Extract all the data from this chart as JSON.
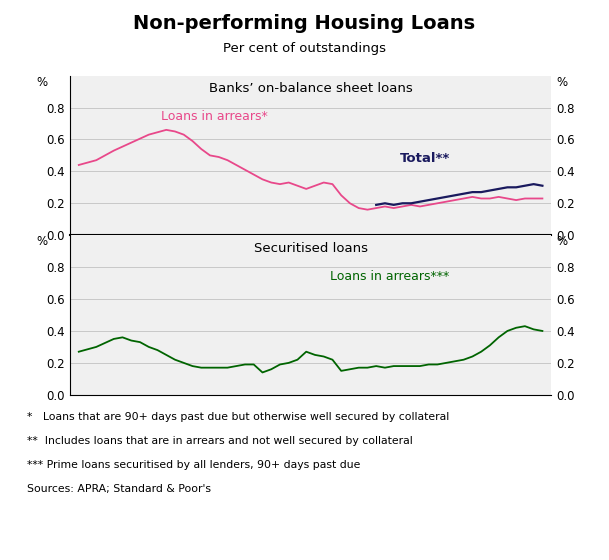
{
  "title": "Non-performing Housing Loans",
  "subtitle": "Per cent of outstandings",
  "footnotes": [
    "*   Loans that are 90+ days past due but otherwise well secured by collateral",
    "**  Includes loans that are in arrears and not well secured by collateral",
    "*** Prime loans securitised by all lenders, 90+ days past due",
    "Sources: APRA; Standard & Poor's"
  ],
  "top_panel_label": "Banks’ on-balance sheet loans",
  "bottom_panel_label": "Securitised loans",
  "colors": {
    "pink": "#E8488A",
    "navy": "#1A1A5E",
    "green": "#006400",
    "background": "#F0F0F0",
    "grid": "#C8C8C8"
  },
  "top_arrears": {
    "x": [
      1993.5,
      1994.0,
      1994.5,
      1995.0,
      1995.5,
      1996.0,
      1996.25,
      1996.5,
      1996.75,
      1997.0,
      1997.25,
      1997.5,
      1997.75,
      1998.0,
      1998.25,
      1998.5,
      1998.75,
      1999.0,
      1999.25,
      1999.5,
      1999.75,
      2000.0,
      2000.25,
      2000.5,
      2000.75,
      2001.0,
      2001.25,
      2001.5,
      2001.75,
      2002.0,
      2002.25,
      2002.5,
      2002.75,
      2003.0,
      2003.25,
      2003.5,
      2003.75,
      2004.0,
      2004.25,
      2004.5,
      2004.75,
      2005.0,
      2005.25,
      2005.5,
      2005.75,
      2006.0,
      2006.25,
      2006.5,
      2006.75
    ],
    "y": [
      0.44,
      0.47,
      0.53,
      0.58,
      0.63,
      0.66,
      0.65,
      0.63,
      0.59,
      0.54,
      0.5,
      0.49,
      0.47,
      0.44,
      0.41,
      0.38,
      0.35,
      0.33,
      0.32,
      0.33,
      0.31,
      0.29,
      0.31,
      0.33,
      0.32,
      0.25,
      0.2,
      0.17,
      0.16,
      0.17,
      0.18,
      0.17,
      0.18,
      0.19,
      0.18,
      0.19,
      0.2,
      0.21,
      0.22,
      0.23,
      0.24,
      0.23,
      0.23,
      0.24,
      0.23,
      0.22,
      0.23,
      0.23,
      0.23
    ]
  },
  "top_total": {
    "x": [
      2002.0,
      2002.25,
      2002.5,
      2002.75,
      2003.0,
      2003.25,
      2003.5,
      2003.75,
      2004.0,
      2004.25,
      2004.5,
      2004.75,
      2005.0,
      2005.25,
      2005.5,
      2005.75,
      2006.0,
      2006.25,
      2006.5,
      2006.75
    ],
    "y": [
      0.19,
      0.2,
      0.19,
      0.2,
      0.2,
      0.21,
      0.22,
      0.23,
      0.24,
      0.25,
      0.26,
      0.27,
      0.27,
      0.28,
      0.29,
      0.3,
      0.3,
      0.31,
      0.32,
      0.31
    ]
  },
  "bottom_arrears": {
    "x": [
      1993.5,
      1994.0,
      1994.5,
      1994.75,
      1995.0,
      1995.25,
      1995.5,
      1995.75,
      1996.0,
      1996.25,
      1996.5,
      1996.75,
      1997.0,
      1997.25,
      1997.5,
      1997.75,
      1998.0,
      1998.25,
      1998.5,
      1998.75,
      1999.0,
      1999.25,
      1999.5,
      1999.75,
      2000.0,
      2000.25,
      2000.5,
      2000.75,
      2001.0,
      2001.25,
      2001.5,
      2001.75,
      2002.0,
      2002.25,
      2002.5,
      2002.75,
      2003.0,
      2003.25,
      2003.5,
      2003.75,
      2004.0,
      2004.25,
      2004.5,
      2004.75,
      2005.0,
      2005.25,
      2005.5,
      2005.75,
      2006.0,
      2006.25,
      2006.5,
      2006.75
    ],
    "y": [
      0.27,
      0.3,
      0.35,
      0.36,
      0.34,
      0.33,
      0.3,
      0.28,
      0.25,
      0.22,
      0.2,
      0.18,
      0.17,
      0.17,
      0.17,
      0.17,
      0.18,
      0.19,
      0.19,
      0.14,
      0.16,
      0.19,
      0.2,
      0.22,
      0.27,
      0.25,
      0.24,
      0.22,
      0.15,
      0.16,
      0.17,
      0.17,
      0.18,
      0.17,
      0.18,
      0.18,
      0.18,
      0.18,
      0.19,
      0.19,
      0.2,
      0.21,
      0.22,
      0.24,
      0.27,
      0.31,
      0.36,
      0.4,
      0.42,
      0.43,
      0.41,
      0.4
    ]
  },
  "xlim": [
    1993.25,
    2007.0
  ],
  "yticks": [
    0.0,
    0.2,
    0.4,
    0.6,
    0.8
  ],
  "xticks": [
    1995,
    1997,
    1999,
    2001,
    2003,
    2005,
    2007
  ]
}
